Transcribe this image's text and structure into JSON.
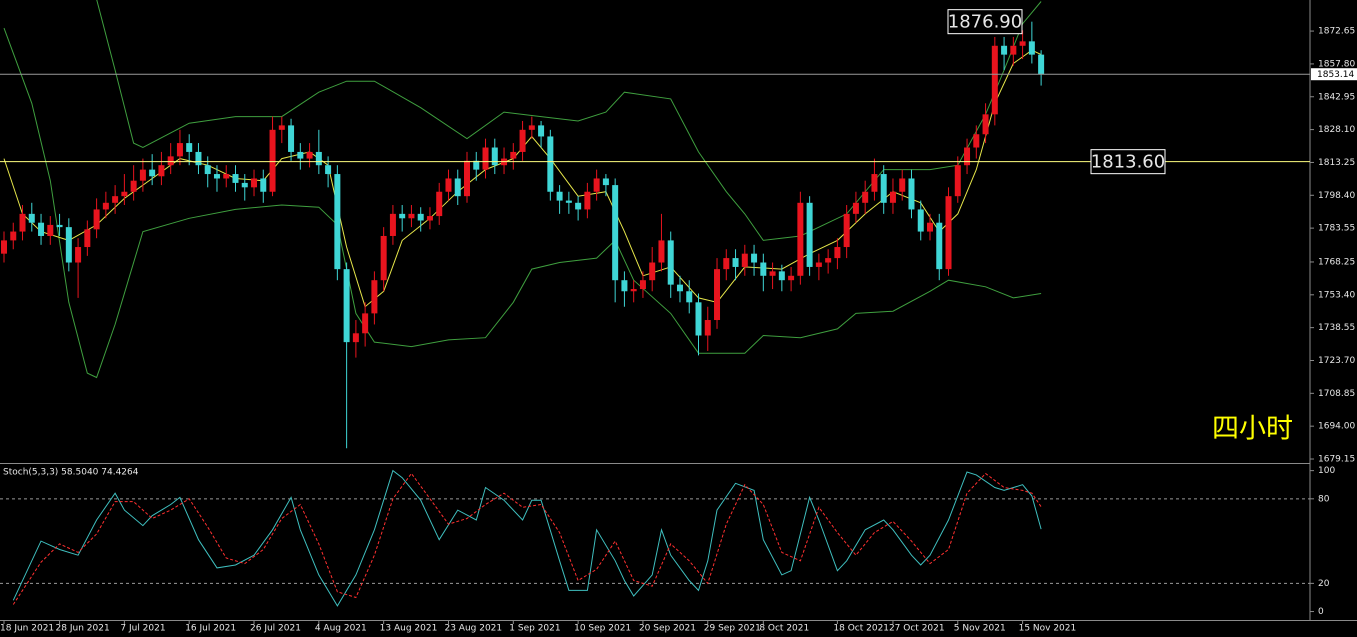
{
  "chart_data": [
    {
      "type": "candlestick",
      "categories": [
        "18 Jun 2021",
        null,
        null,
        null,
        null,
        null,
        "28 Jun 2021",
        null,
        null,
        null,
        null,
        null,
        null,
        "7 Jul 2021",
        null,
        null,
        null,
        null,
        null,
        null,
        "16 Jul 2021",
        null,
        null,
        null,
        null,
        null,
        null,
        "26 Jul 2021",
        null,
        null,
        null,
        null,
        null,
        null,
        "4 Aug 2021",
        null,
        null,
        null,
        null,
        null,
        null,
        "13 Aug 2021",
        null,
        null,
        null,
        null,
        null,
        null,
        "23 Aug 2021",
        null,
        null,
        null,
        null,
        null,
        null,
        "1 Sep 2021",
        null,
        null,
        null,
        null,
        null,
        null,
        "10 Sep 2021",
        null,
        null,
        null,
        null,
        null,
        null,
        "20 Sep 2021",
        null,
        null,
        null,
        null,
        null,
        null,
        "29 Sep 2021",
        null,
        null,
        null,
        null,
        null,
        "8 Oct 2021",
        null,
        null,
        null,
        null,
        null,
        null,
        null,
        "18 Oct 2021",
        null,
        null,
        null,
        null,
        null,
        "27 Oct 2021",
        null,
        null,
        null,
        null,
        null,
        null,
        "5 Nov 2021",
        null,
        null,
        null,
        null,
        null,
        null,
        "15 Nov 2021",
        null,
        null
      ],
      "open": [
        1772,
        1778,
        1782,
        1790,
        1786,
        1780,
        1785,
        1784,
        1768,
        1775,
        1783,
        1792,
        1795,
        1798,
        1800,
        1805,
        1810,
        1807,
        1812,
        1816,
        1822,
        1818,
        1812,
        1808,
        1806,
        1808,
        1804,
        1802,
        1806,
        1800,
        1828,
        1830,
        1818,
        1815,
        1818,
        1812,
        1808,
        1765,
        1732,
        1736,
        1745,
        1760,
        1780,
        1790,
        1788,
        1790,
        1787,
        1789,
        1800,
        1806,
        1798,
        1814,
        1810,
        1820,
        1812,
        1815,
        1818,
        1828,
        1830,
        1825,
        1800,
        1796,
        1795,
        1792,
        1800,
        1806,
        1803,
        1760,
        1755,
        1756,
        1760,
        1768,
        1778,
        1758,
        1755,
        1750,
        1735,
        1742,
        1765,
        1770,
        1766,
        1772,
        1768,
        1762,
        1764,
        1760,
        1762,
        1795,
        1766,
        1768,
        1770,
        1775,
        1790,
        1795,
        1800,
        1808,
        1795,
        1800,
        1806,
        1792,
        1782,
        1786,
        1765,
        1798,
        1812,
        1820,
        1826,
        1835,
        1866,
        1862,
        1866,
        1868,
        1862
      ],
      "high": [
        1782,
        1786,
        1794,
        1795,
        1790,
        1789,
        1790,
        1788,
        1779,
        1787,
        1797,
        1800,
        1803,
        1808,
        1812,
        1815,
        1817,
        1818,
        1822,
        1828,
        1826,
        1822,
        1816,
        1812,
        1812,
        1812,
        1808,
        1810,
        1810,
        1834,
        1834,
        1833,
        1822,
        1822,
        1828,
        1816,
        1812,
        1768,
        1742,
        1750,
        1764,
        1784,
        1794,
        1794,
        1794,
        1793,
        1793,
        1804,
        1810,
        1810,
        1818,
        1818,
        1824,
        1824,
        1820,
        1822,
        1832,
        1834,
        1832,
        1828,
        1803,
        1800,
        1798,
        1804,
        1810,
        1808,
        1806,
        1764,
        1760,
        1764,
        1775,
        1790,
        1782,
        1762,
        1760,
        1754,
        1748,
        1770,
        1774,
        1774,
        1776,
        1776,
        1772,
        1768,
        1767,
        1766,
        1800,
        1798,
        1772,
        1774,
        1779,
        1794,
        1800,
        1805,
        1815,
        1812,
        1806,
        1810,
        1810,
        1796,
        1790,
        1790,
        1802,
        1816,
        1824,
        1830,
        1840,
        1870,
        1870,
        1870,
        1873,
        1876.9,
        1864
      ],
      "low": [
        1768,
        1774,
        1778,
        1782,
        1776,
        1776,
        1780,
        1764,
        1752,
        1771,
        1779,
        1788,
        1790,
        1794,
        1796,
        1800,
        1803,
        1803,
        1808,
        1812,
        1812,
        1808,
        1802,
        1800,
        1802,
        1800,
        1796,
        1798,
        1795,
        1798,
        1822,
        1814,
        1810,
        1811,
        1808,
        1802,
        1760,
        1684,
        1725,
        1730,
        1740,
        1755,
        1776,
        1782,
        1784,
        1782,
        1783,
        1785,
        1796,
        1794,
        1795,
        1805,
        1806,
        1808,
        1808,
        1810,
        1814,
        1824,
        1820,
        1796,
        1790,
        1790,
        1787,
        1788,
        1796,
        1798,
        1750,
        1748,
        1750,
        1752,
        1755,
        1764,
        1752,
        1750,
        1745,
        1726,
        1728,
        1738,
        1760,
        1760,
        1762,
        1762,
        1755,
        1756,
        1755,
        1755,
        1758,
        1762,
        1760,
        1763,
        1765,
        1770,
        1786,
        1790,
        1796,
        1790,
        1790,
        1796,
        1788,
        1778,
        1778,
        1760,
        1762,
        1795,
        1808,
        1815,
        1822,
        1830,
        1855,
        1857,
        1860,
        1858,
        1848
      ],
      "close": [
        1778,
        1782,
        1790,
        1786,
        1780,
        1785,
        1784,
        1768,
        1775,
        1783,
        1792,
        1795,
        1798,
        1800,
        1805,
        1810,
        1807,
        1812,
        1816,
        1822,
        1818,
        1812,
        1808,
        1806,
        1808,
        1804,
        1802,
        1806,
        1800,
        1828,
        1830,
        1818,
        1815,
        1818,
        1812,
        1808,
        1765,
        1732,
        1736,
        1745,
        1760,
        1780,
        1790,
        1788,
        1790,
        1787,
        1789,
        1800,
        1806,
        1798,
        1814,
        1810,
        1820,
        1812,
        1815,
        1818,
        1828,
        1830,
        1825,
        1800,
        1796,
        1795,
        1792,
        1800,
        1806,
        1803,
        1760,
        1755,
        1756,
        1760,
        1768,
        1778,
        1758,
        1755,
        1750,
        1735,
        1742,
        1765,
        1770,
        1766,
        1772,
        1768,
        1762,
        1764,
        1760,
        1762,
        1795,
        1766,
        1768,
        1770,
        1775,
        1790,
        1795,
        1800,
        1808,
        1795,
        1800,
        1806,
        1792,
        1782,
        1786,
        1765,
        1798,
        1812,
        1820,
        1826,
        1835,
        1866,
        1862,
        1866,
        1868,
        1862,
        1853
      ],
      "up_color": "#e8141e",
      "down_color": "#3fd6d6",
      "overlays": [
        {
          "color": "#3f9f3f",
          "x": [
            10,
            12,
            14,
            15,
            20,
            25,
            30,
            34,
            37,
            40,
            45,
            50,
            54,
            58,
            62,
            65,
            67,
            72,
            75,
            78,
            80,
            82,
            86,
            91,
            95,
            100,
            103,
            106,
            108,
            110,
            112
          ],
          "values": [
            1887,
            1855,
            1822,
            1820,
            1831,
            1834,
            1834,
            1845,
            1850,
            1850,
            1838,
            1824,
            1836,
            1834,
            1832,
            1836,
            1845,
            1842,
            1818,
            1800,
            1790,
            1778,
            1780,
            1790,
            1810,
            1810,
            1812,
            1835,
            1855,
            1876,
            1886
          ]
        },
        {
          "color": "#3f9f3f",
          "x": [
            0,
            3,
            5,
            7,
            9,
            10,
            12,
            15,
            20,
            25,
            30,
            34,
            36,
            38,
            40,
            44,
            48,
            52,
            55,
            57,
            60,
            64,
            66,
            68,
            72,
            75,
            80,
            82,
            86,
            90,
            92,
            96,
            100,
            102,
            106,
            109,
            112
          ],
          "values": [
            1874,
            1840,
            1805,
            1750,
            1718,
            1716,
            1740,
            1782,
            1788,
            1792,
            1794,
            1793,
            1785,
            1745,
            1732,
            1730,
            1733,
            1734,
            1750,
            1765,
            1768,
            1770,
            1778,
            1760,
            1745,
            1727,
            1727,
            1735,
            1734,
            1738,
            1745,
            1746,
            1755,
            1760,
            1757,
            1752,
            1754
          ]
        },
        {
          "color": "#e6e64a",
          "x": [
            0,
            2,
            4,
            7,
            10,
            13,
            16,
            19,
            22,
            25,
            28,
            30,
            33,
            35,
            37,
            39,
            41,
            43,
            46,
            49,
            52,
            55,
            57,
            59,
            62,
            65,
            67,
            69,
            72,
            75,
            77,
            80,
            84,
            87,
            90,
            93,
            96,
            99,
            101,
            103,
            105,
            107,
            109,
            111,
            112
          ],
          "values": [
            1815,
            1790,
            1782,
            1778,
            1785,
            1797,
            1806,
            1815,
            1812,
            1806,
            1805,
            1815,
            1818,
            1812,
            1775,
            1748,
            1755,
            1778,
            1788,
            1800,
            1810,
            1815,
            1825,
            1815,
            1798,
            1800,
            1782,
            1762,
            1766,
            1752,
            1750,
            1766,
            1765,
            1772,
            1778,
            1790,
            1800,
            1795,
            1782,
            1790,
            1810,
            1840,
            1858,
            1864,
            1862
          ]
        }
      ],
      "ylim": [
        1677.8,
        1886.7
      ],
      "yticks": [
        1872.65,
        {
          "value": 1857.8,
          "label": "1857.80"
        },
        1842.95,
        {
          "value": 1828.1,
          "label": "1828.10"
        },
        1813.25,
        {
          "value": 1798.4,
          "label": "1798.40"
        },
        1783.55,
        1768.25,
        {
          "value": 1753.4,
          "label": "1753.40"
        },
        1738.55,
        {
          "value": 1723.7,
          "label": "1723.70"
        },
        1708.85,
        {
          "value": 1694,
          "label": "1694.00"
        },
        1679.15
      ],
      "price_line": {
        "value": 1853.14,
        "color": "#9a9a9a"
      },
      "annotations": [
        {
          "value": 1876.9,
          "label": "1876.90"
        },
        {
          "value": 1813.6,
          "label": "1813.60",
          "line_color": "#ffff80"
        }
      ],
      "note": "四小时"
    },
    {
      "type": "line",
      "title": "Stoch(5,3,3) 58.5040 74.4264",
      "series": [
        {
          "color": "#3fbfbf",
          "style": "solid",
          "x": [
            1,
            4,
            6,
            8,
            10,
            12,
            13,
            15,
            16,
            18,
            19,
            21,
            23,
            25,
            27,
            29,
            31,
            32,
            34,
            36,
            38,
            40,
            42,
            43,
            45,
            47,
            49,
            51,
            52,
            54,
            56,
            57,
            58,
            60,
            61,
            63,
            64,
            66,
            67,
            68,
            70,
            71,
            72,
            74,
            75,
            76,
            77,
            79,
            81,
            82,
            84,
            85,
            87,
            88,
            90,
            91,
            93,
            95,
            96,
            98,
            99,
            100,
            102,
            104,
            105,
            107,
            108,
            110,
            111,
            112
          ],
          "values": [
            8,
            50,
            44,
            40,
            65,
            84,
            72,
            61,
            68,
            76,
            81,
            51,
            31,
            33,
            40,
            58,
            81,
            58,
            26,
            4,
            26,
            58,
            100,
            95,
            79,
            51,
            72,
            65,
            88,
            79,
            65,
            79,
            79,
            36,
            15,
            15,
            58,
            36,
            22,
            11,
            26,
            58,
            40,
            22,
            15,
            36,
            72,
            91,
            86,
            51,
            26,
            29,
            81,
            65,
            29,
            36,
            58,
            65,
            58,
            40,
            33,
            40,
            65,
            99,
            97,
            88,
            86,
            90,
            82,
            58.5
          ]
        },
        {
          "color": "#ff3030",
          "style": "dashed",
          "x": [
            1,
            4,
            6,
            8,
            10,
            12,
            14,
            16,
            18,
            20,
            22,
            24,
            26,
            28,
            30,
            32,
            34,
            36,
            38,
            40,
            42,
            44,
            46,
            48,
            50,
            52,
            54,
            56,
            58,
            60,
            62,
            64,
            66,
            68,
            70,
            72,
            74,
            76,
            78,
            80,
            82,
            84,
            86,
            88,
            90,
            92,
            94,
            96,
            98,
            100,
            102,
            104,
            106,
            108,
            110,
            111,
            112
          ],
          "values": [
            5,
            35,
            48,
            42,
            55,
            78,
            78,
            66,
            72,
            80,
            60,
            38,
            34,
            44,
            66,
            76,
            48,
            14,
            10,
            40,
            80,
            98,
            80,
            62,
            66,
            76,
            84,
            74,
            76,
            56,
            22,
            30,
            50,
            22,
            18,
            48,
            36,
            20,
            62,
            90,
            76,
            42,
            36,
            74,
            56,
            40,
            56,
            64,
            50,
            34,
            44,
            84,
            98,
            88,
            86,
            84,
            74.4
          ]
        }
      ],
      "ylim": [
        -6,
        104
      ],
      "yticks": [
        100,
        80,
        20,
        0
      ],
      "levels": [
        80,
        20
      ]
    }
  ]
}
